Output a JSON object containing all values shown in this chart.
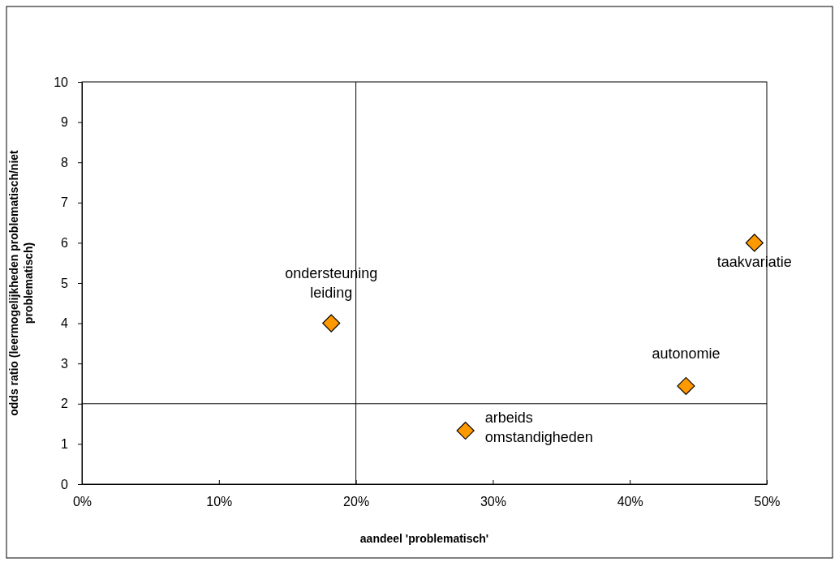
{
  "chart_data": {
    "type": "scatter",
    "xlabel": "aandeel 'problematisch'",
    "ylabel": "odds ratio (leermogelijkheden problematisch/niet\nproblematisch)",
    "x": [
      18.2,
      28.0,
      44.1,
      49.1
    ],
    "series": [
      {
        "color": "#ff9900",
        "values": [
          4.0,
          1.33,
          2.44,
          6.0
        ]
      }
    ],
    "xlim": [
      0,
      50
    ],
    "ylim": [
      0,
      10
    ],
    "xticks": [
      {
        "value": 0,
        "label": "0%"
      },
      {
        "value": 10,
        "label": "10%"
      },
      {
        "value": 20,
        "label": "20%"
      },
      {
        "value": 30,
        "label": "30%"
      },
      {
        "value": 40,
        "label": "40%"
      },
      {
        "value": 50,
        "label": "50%"
      }
    ],
    "yticks": [
      0,
      1,
      2,
      3,
      4,
      5,
      6,
      7,
      8,
      9,
      10
    ],
    "ref_lines": [
      {
        "axis": "x",
        "value": 20,
        "color": "#000000"
      },
      {
        "axis": "y",
        "value": 2,
        "color": "#000000"
      }
    ],
    "annotations": [
      {
        "text": "ondersteuning\nleiding",
        "x": 18.2,
        "y": 4.0
      },
      {
        "text": "arbeids\nomstandigheden",
        "x": 28.0,
        "y": 1.33
      },
      {
        "text": "autonomie",
        "x": 44.1,
        "y": 2.44
      },
      {
        "text": "taakvariatie",
        "x": 49.1,
        "y": 6.0
      }
    ],
    "marker": "diamond",
    "grid": false
  }
}
